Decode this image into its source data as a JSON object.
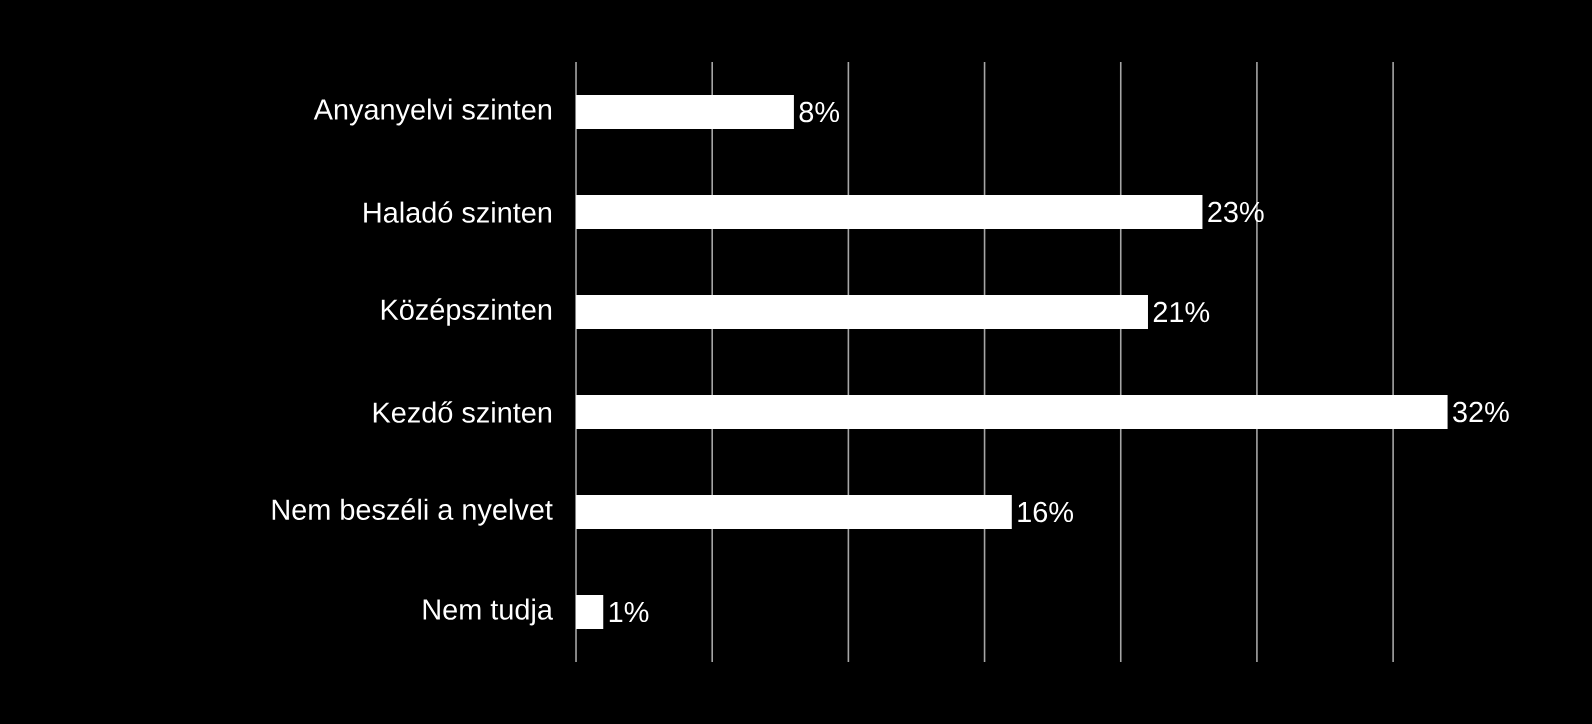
{
  "chart_data": {
    "type": "bar",
    "orientation": "horizontal",
    "categories": [
      "Anyanyelvi szinten",
      "Haladó szinten",
      "Középszinten",
      "Kezdő szinten",
      "Nem beszéli a nyelvet",
      "Nem tudja"
    ],
    "values": [
      8,
      23,
      21,
      32,
      16,
      1
    ],
    "value_labels": [
      "8%",
      "23%",
      "21%",
      "32%",
      "16%",
      "1%"
    ],
    "color": "#ffffff",
    "grid": "x",
    "tick_labels": "y"
  }
}
